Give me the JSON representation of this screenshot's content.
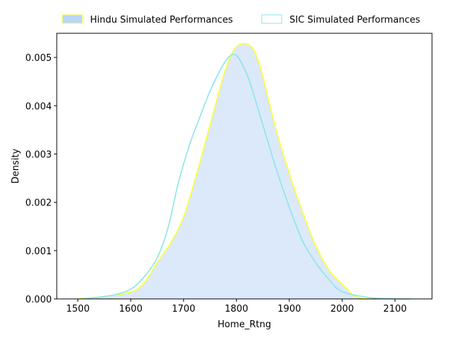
{
  "chart_data": {
    "type": "area",
    "xlabel": "Home_Rtng",
    "ylabel": "Density",
    "xlim": [
      1460,
      2170
    ],
    "ylim": [
      0,
      0.0055
    ],
    "xticks": [
      1500,
      1600,
      1700,
      1800,
      1900,
      2000,
      2100
    ],
    "yticks": [
      0.0,
      0.001,
      0.002,
      0.003,
      0.004,
      0.005
    ],
    "ytick_labels": [
      "0.000",
      "0.001",
      "0.002",
      "0.003",
      "0.004",
      "0.005"
    ],
    "grid": false,
    "legend_position": "top",
    "series": [
      {
        "name": "Hindu Simulated Performances",
        "fill": "#dbe9fb",
        "line": "#ffff33",
        "filled": true,
        "x": [
          1500,
          1550,
          1600,
          1625,
          1650,
          1675,
          1700,
          1725,
          1750,
          1775,
          1790,
          1800,
          1810,
          1820,
          1830,
          1840,
          1850,
          1875,
          1900,
          1925,
          1950,
          1975,
          2000,
          2025,
          2050,
          2075
        ],
        "y": [
          0.0,
          5e-05,
          0.00014,
          0.00033,
          0.00075,
          0.00115,
          0.0017,
          0.0026,
          0.0036,
          0.0046,
          0.00505,
          0.00522,
          0.00528,
          0.00528,
          0.0052,
          0.00497,
          0.0046,
          0.0035,
          0.0026,
          0.0018,
          0.0011,
          0.0006,
          0.0003,
          5e-05,
          0.0,
          0.0
        ]
      },
      {
        "name": "SIC Simulated Performances",
        "fill": "none",
        "line": "#8ae6ea",
        "filled": false,
        "x": [
          1510,
          1550,
          1575,
          1600,
          1625,
          1650,
          1670,
          1690,
          1710,
          1725,
          1750,
          1775,
          1790,
          1800,
          1810,
          1825,
          1850,
          1875,
          1900,
          1925,
          1950,
          1975,
          2000,
          2050,
          2100,
          2130
        ],
        "y": [
          0.0,
          5e-05,
          0.0001,
          0.0002,
          0.00045,
          0.00085,
          0.00145,
          0.0024,
          0.00315,
          0.0036,
          0.0043,
          0.00485,
          0.00505,
          0.00504,
          0.00488,
          0.0045,
          0.0036,
          0.0027,
          0.0019,
          0.0012,
          0.00075,
          0.0004,
          0.00015,
          3e-05,
          0.0,
          0.0
        ]
      }
    ]
  }
}
